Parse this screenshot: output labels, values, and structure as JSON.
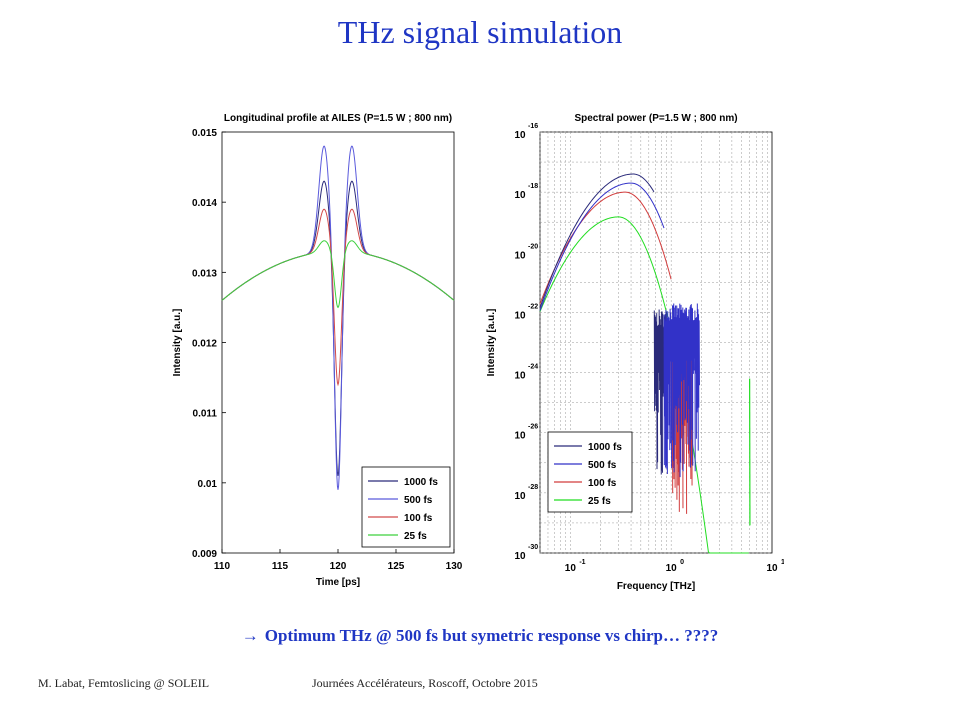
{
  "slide": {
    "title": "THz signal simulation",
    "conclusion_arrow": "→",
    "conclusion": "Optimum THz @ 500 fs but symetric response vs chirp… ????",
    "footer_left": "M. Labat, Femtoslicing @ SOLEIL",
    "footer_right": "Journées Accélérateurs, Roscoff, Octobre 2015"
  },
  "chart_data": [
    {
      "type": "line",
      "title": "Longitudinal profile at AILES (P=1.5 W ; 800 nm)",
      "xlabel": "Time [ps]",
      "ylabel": "Intensity [a.u.]",
      "xlim": [
        110,
        130
      ],
      "ylim": [
        0.009,
        0.015
      ],
      "xticks": [
        110,
        115,
        120,
        125,
        130
      ],
      "yticks": [
        0.009,
        0.01,
        0.011,
        0.012,
        0.013,
        0.014,
        0.015
      ],
      "ytick_labels": [
        "0.009",
        "0.01",
        "0.011",
        "0.012",
        "0.013",
        "0.014",
        "0.015"
      ],
      "grid": false,
      "legend_position": "bottom-right",
      "series": [
        {
          "name": "1000 fs",
          "color": "#2a2a7a",
          "peak": 0.0143,
          "dip": 0.0101
        },
        {
          "name": "500 fs",
          "color": "#5a5adc",
          "peak": 0.0148,
          "dip": 0.0099
        },
        {
          "name": "100 fs",
          "color": "#d24a4a",
          "peak": 0.0139,
          "dip": 0.0114
        },
        {
          "name": "25 fs",
          "color": "#3ed03e",
          "peak": 0.01345,
          "dip": 0.0125
        }
      ],
      "baseline": {
        "edge_value": 0.0126,
        "center_value": 0.0133
      }
    },
    {
      "type": "line",
      "title": "Spectral power (P=1.5 W ; 800 nm)",
      "xlabel": "Frequency [THz]",
      "ylabel": "Intensity [a.u.]",
      "xscale": "log",
      "yscale": "log",
      "xlim": [
        0.05,
        10
      ],
      "ylim": [
        1e-30,
        1e-16
      ],
      "xtick_exponents": [
        -1,
        0,
        1
      ],
      "ytick_exponents": [
        -30,
        -28,
        -26,
        -24,
        -22,
        -20,
        -18,
        -16
      ],
      "tick_base": "10",
      "grid": true,
      "legend_position": "bottom-left",
      "series": [
        {
          "name": "1000 fs",
          "color": "#2a2a7a",
          "peak_freq": 0.42,
          "peak_value": 4e-18,
          "cutoff_freq": 0.68
        },
        {
          "name": "500 fs",
          "color": "#3232c8",
          "peak_freq": 0.4,
          "peak_value": 2e-18,
          "cutoff_freq": 0.85
        },
        {
          "name": "100 fs",
          "color": "#d23c3c",
          "peak_freq": 0.35,
          "peak_value": 1e-18,
          "cutoff_freq": 1.0
        },
        {
          "name": "25 fs",
          "color": "#22dd22",
          "peak_freq": 0.3,
          "peak_value": 1.5e-19,
          "cutoff_freq": 6.0
        }
      ]
    }
  ]
}
